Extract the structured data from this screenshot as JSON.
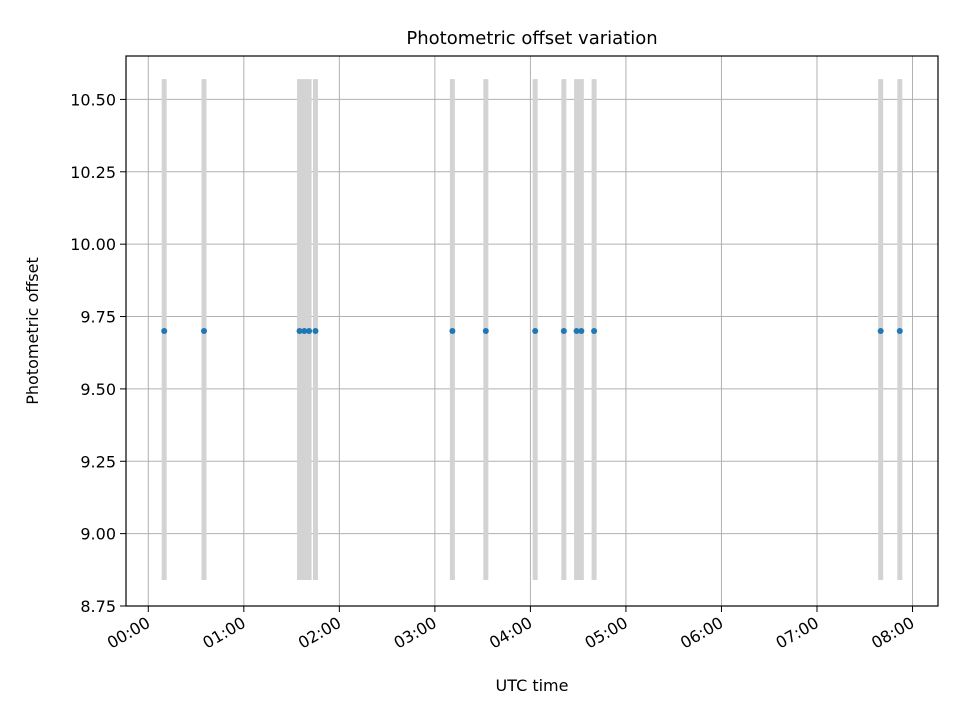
{
  "chart_data": {
    "type": "scatter",
    "title": "Photometric offset variation",
    "xlabel": "UTC time",
    "ylabel": "Photometric offset",
    "xlim": [
      "23:46",
      "08:16"
    ],
    "ylim": [
      8.75,
      10.65
    ],
    "grid": true,
    "x_ticks": [
      "00:00",
      "01:00",
      "02:00",
      "03:00",
      "04:00",
      "05:00",
      "06:00",
      "07:00",
      "08:00"
    ],
    "y_ticks": [
      "8.75",
      "9.00",
      "9.25",
      "9.50",
      "9.75",
      "10.00",
      "10.25",
      "10.50"
    ],
    "marker_color": "#1f77b4",
    "band_color": "#d3d3d3",
    "series": [
      {
        "x": [
          "00:10",
          "00:35",
          "01:35",
          "01:38",
          "01:41",
          "01:45",
          "03:11",
          "03:32",
          "04:03",
          "04:21",
          "04:29",
          "04:32",
          "04:40",
          "07:40",
          "07:52"
        ],
        "y": [
          9.7,
          9.7,
          9.7,
          9.7,
          9.7,
          9.7,
          9.7,
          9.7,
          9.7,
          9.7,
          9.7,
          9.7,
          9.7,
          9.7,
          9.7
        ],
        "band": [
          8.84,
          10.57
        ]
      }
    ]
  }
}
